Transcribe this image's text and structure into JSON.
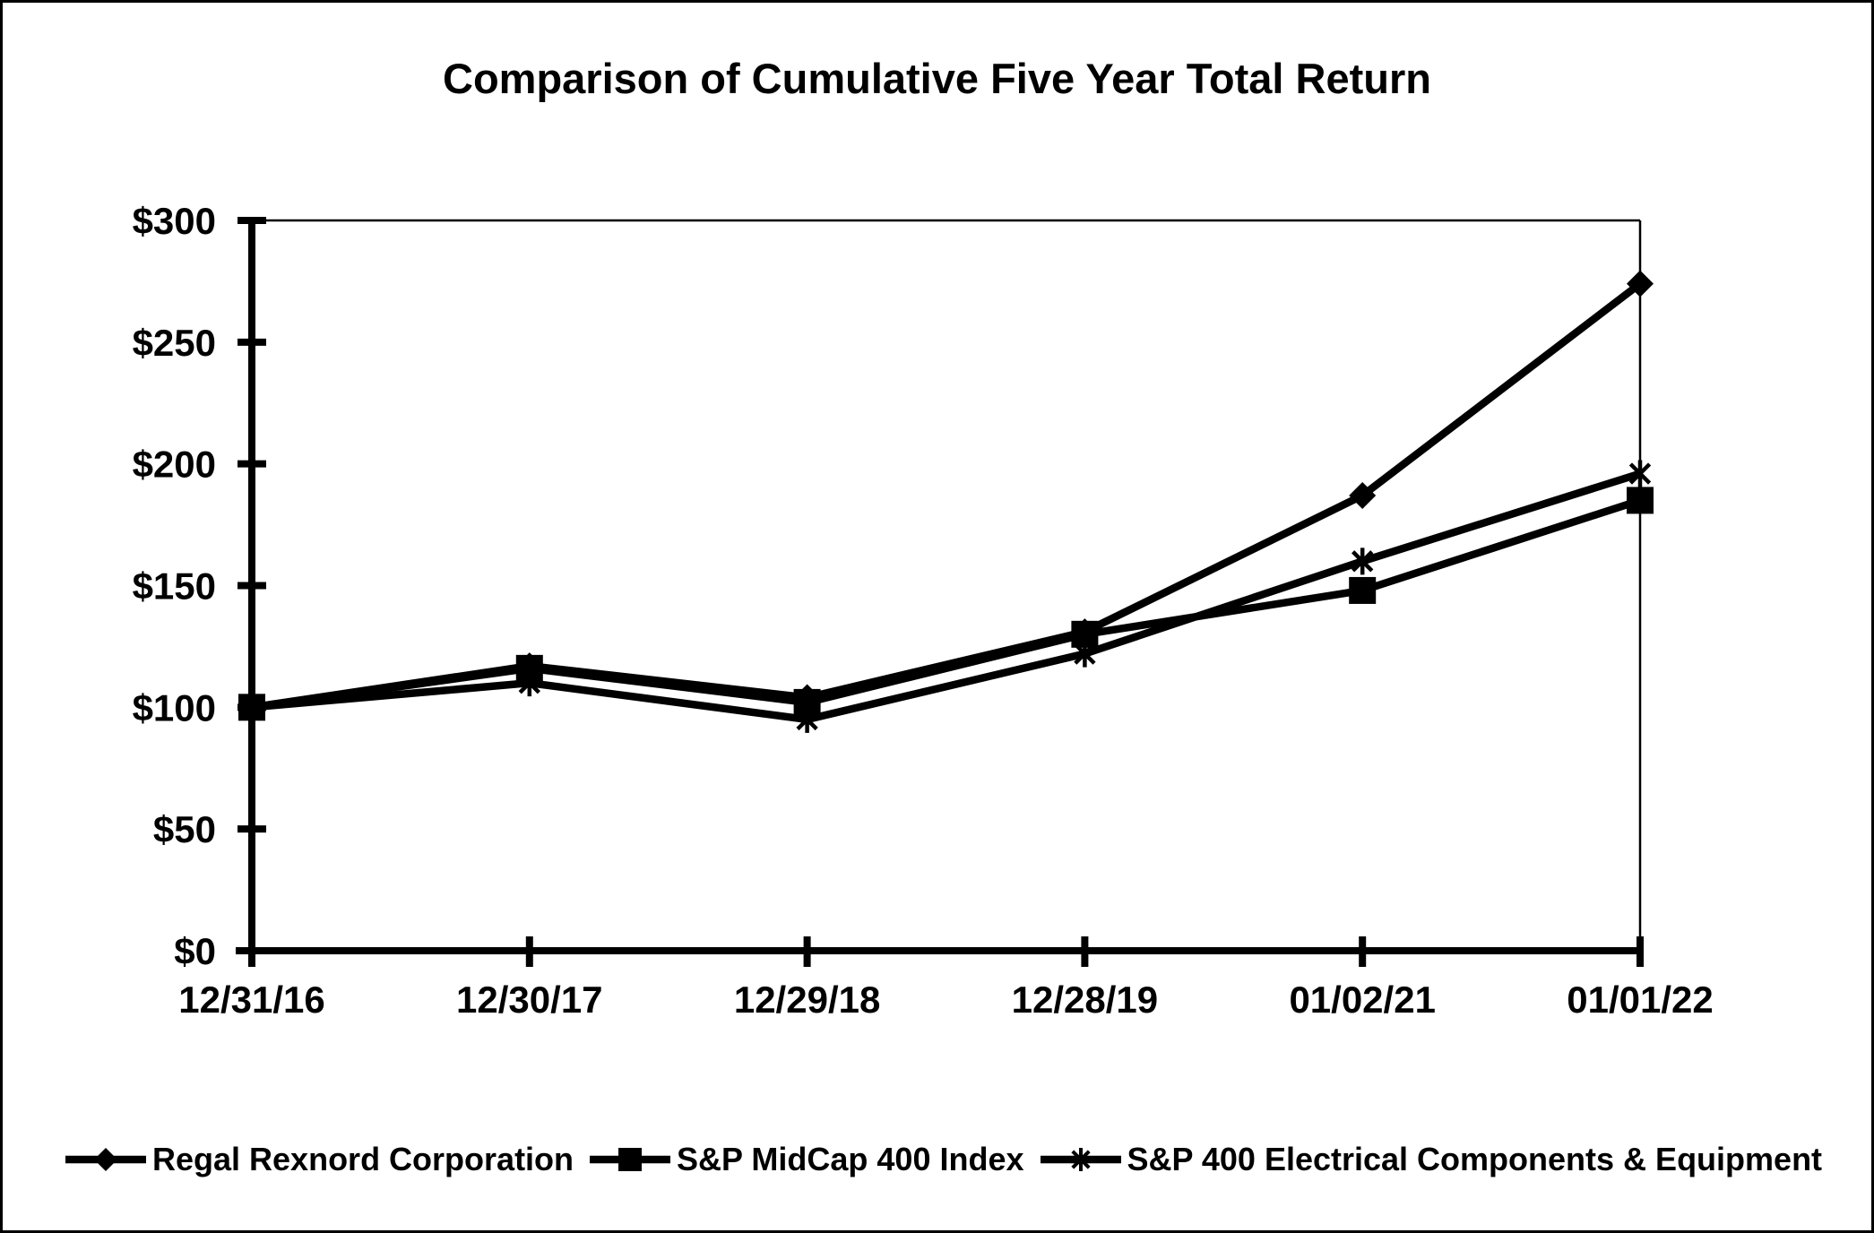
{
  "chart_data": {
    "type": "line",
    "title": "Comparison of Cumulative Five Year Total Return",
    "categories": [
      "12/31/16",
      "12/30/17",
      "12/29/18",
      "12/28/19",
      "01/02/21",
      "01/01/22"
    ],
    "series": [
      {
        "name": "Regal Rexnord Corporation",
        "marker": "diamond",
        "values": [
          100,
          117,
          104,
          131,
          187,
          274
        ]
      },
      {
        "name": "S&P MidCap 400 Index",
        "marker": "square",
        "values": [
          100,
          116,
          102,
          130,
          148,
          185
        ]
      },
      {
        "name": "S&P 400 Electrical Components & Equipment",
        "marker": "asterisk",
        "values": [
          100,
          110,
          95,
          122,
          160,
          196
        ]
      }
    ],
    "ylim": [
      0,
      300
    ],
    "y_tick_step": 50,
    "y_ticks": [
      0,
      50,
      100,
      150,
      200,
      250,
      300
    ],
    "y_tick_labels": [
      "$0",
      "$50",
      "$100",
      "$150",
      "$200",
      "$250",
      "$300"
    ],
    "grid": false,
    "legend_position": "bottom",
    "colors": {
      "line": "#000000",
      "background": "#ffffff",
      "text": "#000000"
    }
  }
}
